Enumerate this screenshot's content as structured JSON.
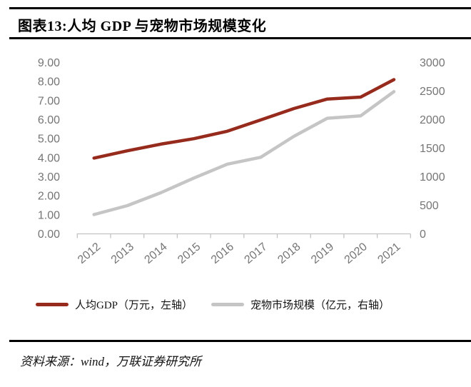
{
  "header": {
    "title": "图表13:人均 GDP 与宠物市场规模变化"
  },
  "chart_data": {
    "type": "line",
    "title": "人均 GDP 与宠物市场规模变化",
    "categories": [
      "2012",
      "2013",
      "2014",
      "2015",
      "2016",
      "2017",
      "2018",
      "2019",
      "2020",
      "2021"
    ],
    "series": [
      {
        "name": "人均GDP（万元，左轴）",
        "axis": "left",
        "color": "#962B1D",
        "values": [
          3.98,
          4.36,
          4.71,
          5.0,
          5.39,
          5.98,
          6.58,
          7.08,
          7.18,
          8.1
        ]
      },
      {
        "name": "宠物市场规模（亿元，右轴）",
        "axis": "right",
        "color": "#C5C5C5",
        "values": [
          337,
          494,
          719,
          978,
          1220,
          1340,
          1708,
          2024,
          2065,
          2490
        ]
      }
    ],
    "left_axis": {
      "min": 0,
      "max": 9,
      "step": 1,
      "ticks": [
        "0.00",
        "1.00",
        "2.00",
        "3.00",
        "4.00",
        "5.00",
        "6.00",
        "7.00",
        "8.00",
        "9.00"
      ]
    },
    "right_axis": {
      "min": 0,
      "max": 3000,
      "step": 500,
      "ticks": [
        "0",
        "500",
        "1000",
        "1500",
        "2000",
        "2500",
        "3000"
      ]
    },
    "legend_position": "bottom",
    "grid": false
  },
  "source": {
    "text": "资料来源：wind，万联证券研究所"
  },
  "colors": {
    "axis_text": "#757575",
    "axis_line": "#C2C2C2",
    "rule": "#000000",
    "background": "#FFFFFF"
  }
}
